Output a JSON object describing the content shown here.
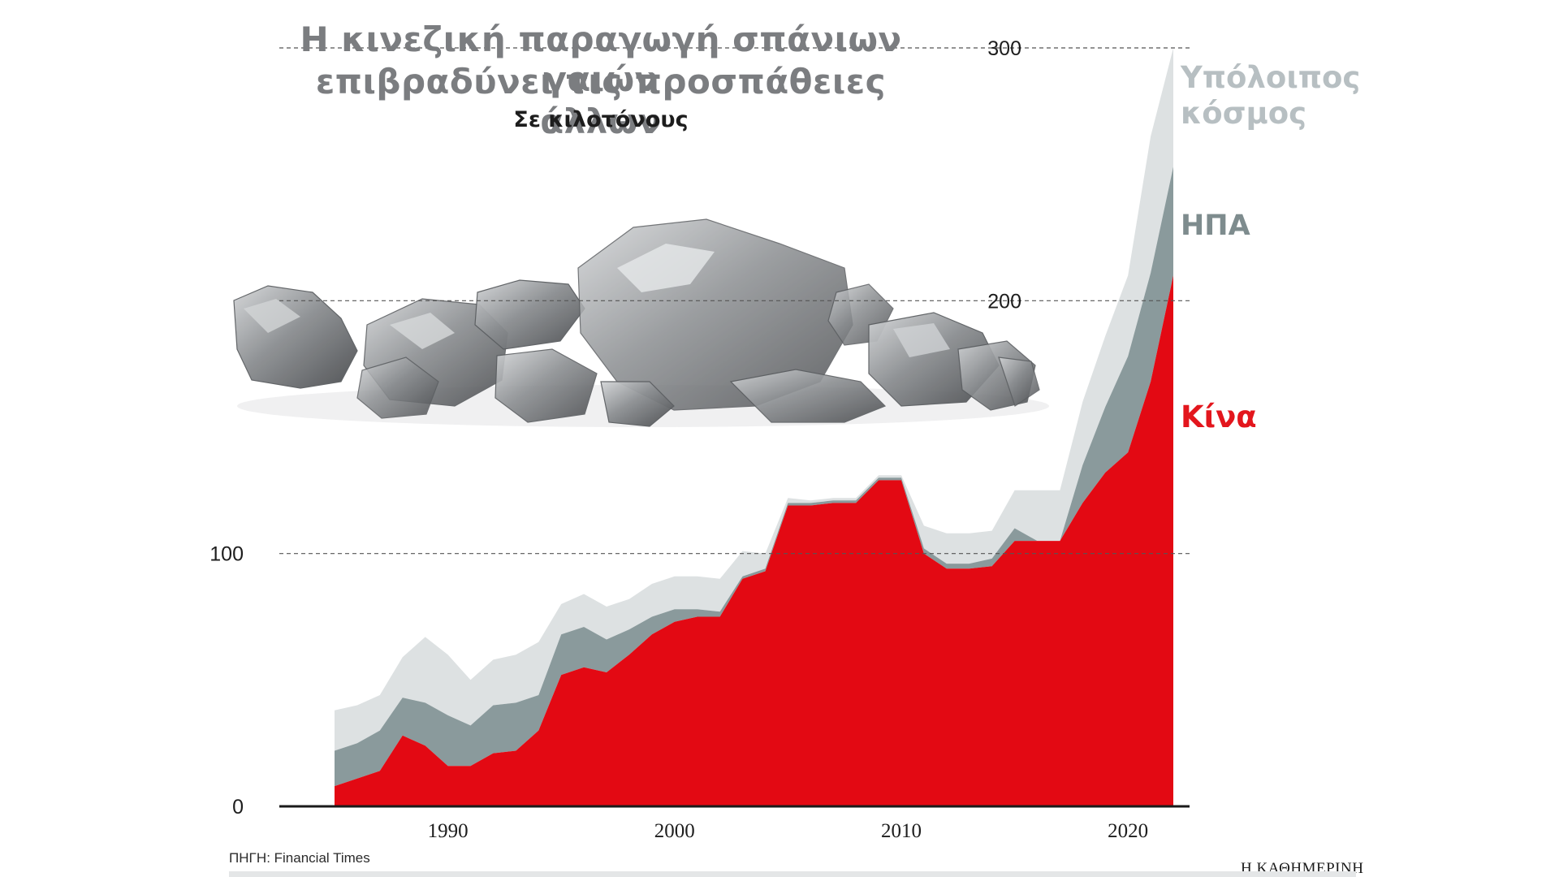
{
  "header": {
    "title_line1": "Η κινεζική παραγωγή σπάνιων γαιών",
    "title_line2": "επιβραδύνει τις προσπάθειες άλλων",
    "subtitle": "Σε κιλοτόνους"
  },
  "labels": {
    "rest": "Υπόλοιπος κόσμος",
    "usa": "ΗΠΑ",
    "china": "Κίνα"
  },
  "footer": {
    "source": "ΠΗΓΗ: Financial Times",
    "publisher": "Η ΚΑΘΗΜΕΡΙΝΗ"
  },
  "colors": {
    "china": "#e30913",
    "usa": "#8a9a9c",
    "rest": "#dde1e2",
    "title": "#7b7d80",
    "rocks": "#8f9194"
  },
  "decor": {
    "image": "rare-earth-ore-rocks"
  },
  "chart_data": {
    "type": "area",
    "stacked": true,
    "title": "Η κινεζική παραγωγή σπάνιων γαιών επιβραδύνει τις προσπάθειες άλλων",
    "subtitle": "Σε κιλοτόνους",
    "xlim": [
      1985,
      2022
    ],
    "ylim": [
      0,
      300
    ],
    "y_ticks": [
      0,
      100,
      200,
      300
    ],
    "x_ticks": [
      1990,
      2000,
      2010,
      2020
    ],
    "grid": "dashed lines at 100, 200, 300",
    "legend": "direct labels at right",
    "x": [
      1985,
      1986,
      1987,
      1988,
      1989,
      1990,
      1991,
      1992,
      1993,
      1994,
      1995,
      1996,
      1997,
      1998,
      1999,
      2000,
      2001,
      2002,
      2003,
      2004,
      2005,
      2006,
      2007,
      2008,
      2009,
      2010,
      2011,
      2012,
      2013,
      2014,
      2015,
      2016,
      2017,
      2018,
      2019,
      2020,
      2021,
      2022
    ],
    "series": [
      {
        "name": "Κίνα",
        "values": [
          8,
          11,
          14,
          28,
          24,
          16,
          16,
          21,
          22,
          30,
          52,
          55,
          53,
          60,
          68,
          73,
          75,
          75,
          90,
          93,
          119,
          119,
          120,
          120,
          129,
          129,
          100,
          94,
          94,
          95,
          105,
          105,
          105,
          120,
          132,
          140,
          168,
          210
        ]
      },
      {
        "name": "ΗΠΑ",
        "values": [
          14,
          14,
          16,
          15,
          17,
          20,
          16,
          19,
          19,
          14,
          16,
          16,
          13,
          10,
          7,
          5,
          3,
          2,
          1,
          1,
          1,
          1,
          1,
          1,
          1,
          1,
          2,
          2,
          2,
          3,
          5,
          0,
          0,
          15,
          26,
          38,
          43,
          43
        ]
      },
      {
        "name": "Υπόλοιπος κόσμος",
        "values": [
          16,
          15,
          14,
          16,
          26,
          24,
          18,
          18,
          19,
          21,
          12,
          13,
          13,
          12,
          13,
          13,
          13,
          13,
          10,
          6,
          2,
          1,
          1,
          1,
          1,
          1,
          9,
          12,
          12,
          11,
          15,
          20,
          20,
          25,
          28,
          32,
          54,
          47
        ]
      }
    ]
  }
}
